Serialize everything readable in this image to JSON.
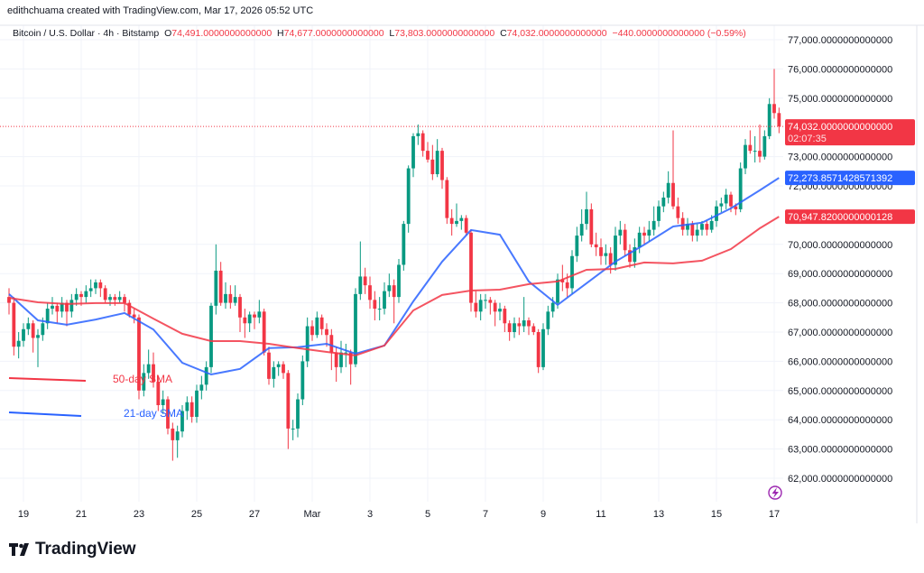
{
  "credit": "edithchuama created with TradingView.com, Mar 17, 2026 05:52 UTC",
  "symbol": {
    "title": "Bitcoin / U.S. Dollar · 4h · Bitstamp",
    "open_label": "O",
    "open": "74,491.0000000000000",
    "high_label": "H",
    "high": "74,677.0000000000000",
    "low_label": "L",
    "low": "73,803.0000000000000",
    "close_label": "C",
    "close": "74,032.0000000000000",
    "change": "−440.0000000000000 (−0.59%)"
  },
  "logo_text": "TradingView",
  "colors": {
    "up": "#089981",
    "down": "#f23645",
    "sma21": "#2962ff",
    "sma50": "#f23645",
    "grid": "#f0f3fa"
  },
  "icons": {
    "bottom_right": "lightning-icon"
  },
  "chart_data": {
    "type": "candlestick",
    "title": "",
    "interval": "4h",
    "start": "2026-02-18 12:00",
    "ylim": [
      61500,
      77600
    ],
    "grid": true,
    "y_ticks": [
      {
        "v": 77000,
        "label": "77,000.0000000000000"
      },
      {
        "v": 76000,
        "label": "76,000.0000000000000"
      },
      {
        "v": 75000,
        "label": "75,000.0000000000000"
      },
      {
        "v": 73000,
        "label": "73,000.0000000000000"
      },
      {
        "v": 72000,
        "label": "72,000.0000000000000"
      },
      {
        "v": 70000,
        "label": "70,000.0000000000000"
      },
      {
        "v": 69000,
        "label": "69,000.0000000000000"
      },
      {
        "v": 68000,
        "label": "68,000.0000000000000"
      },
      {
        "v": 67000,
        "label": "67,000.0000000000000"
      },
      {
        "v": 66000,
        "label": "66,000.0000000000000"
      },
      {
        "v": 65000,
        "label": "65,000.0000000000000"
      },
      {
        "v": 64000,
        "label": "64,000.0000000000000"
      },
      {
        "v": 63000,
        "label": "63,000.0000000000000"
      },
      {
        "v": 62000,
        "label": "62,000.0000000000000"
      }
    ],
    "x_ticks": [
      {
        "t": "2026-02-19",
        "label": "19"
      },
      {
        "t": "2026-02-21",
        "label": "21"
      },
      {
        "t": "2026-02-23",
        "label": "23"
      },
      {
        "t": "2026-02-25",
        "label": "25"
      },
      {
        "t": "2026-02-27",
        "label": "27"
      },
      {
        "t": "2026-03-01",
        "label": "Mar"
      },
      {
        "t": "2026-03-03",
        "label": "3"
      },
      {
        "t": "2026-03-05",
        "label": "5"
      },
      {
        "t": "2026-03-07",
        "label": "7"
      },
      {
        "t": "2026-03-09",
        "label": "9"
      },
      {
        "t": "2026-03-11",
        "label": "11"
      },
      {
        "t": "2026-03-13",
        "label": "13"
      },
      {
        "t": "2026-03-15",
        "label": "15"
      },
      {
        "t": "2026-03-17",
        "label": "17"
      }
    ],
    "ohlc": [
      [
        68200,
        68500,
        67600,
        68000
      ],
      [
        68000,
        68200,
        66200,
        66500
      ],
      [
        66500,
        67000,
        66100,
        66700
      ],
      [
        66700,
        67300,
        66500,
        67100
      ],
      [
        67100,
        67500,
        66900,
        67300
      ],
      [
        67300,
        67400,
        66300,
        66800
      ],
      [
        66800,
        67100,
        65800,
        66900
      ],
      [
        66900,
        67500,
        66700,
        67300
      ],
      [
        67300,
        68000,
        67100,
        67800
      ],
      [
        67800,
        68200,
        67600,
        67900
      ],
      [
        67900,
        68000,
        67300,
        67700
      ],
      [
        67700,
        68200,
        67500,
        68000
      ],
      [
        68000,
        68100,
        67200,
        67700
      ],
      [
        67700,
        68300,
        67500,
        68100
      ],
      [
        68100,
        68500,
        67900,
        68300
      ],
      [
        68300,
        68400,
        67900,
        68200
      ],
      [
        68200,
        68600,
        68000,
        68400
      ],
      [
        68400,
        68800,
        68200,
        68500
      ],
      [
        68500,
        68800,
        68300,
        68700
      ],
      [
        68700,
        68800,
        68200,
        68500
      ],
      [
        68500,
        68600,
        68000,
        68100
      ],
      [
        68100,
        68300,
        67900,
        68200
      ],
      [
        68200,
        68300,
        67900,
        68100
      ],
      [
        68100,
        68400,
        68000,
        68200
      ],
      [
        68200,
        68300,
        67700,
        68000
      ],
      [
        68000,
        68100,
        67500,
        67600
      ],
      [
        67600,
        67800,
        67300,
        67500
      ],
      [
        67500,
        67600,
        64700,
        65000
      ],
      [
        65000,
        65900,
        64800,
        65600
      ],
      [
        65600,
        66400,
        65400,
        65900
      ],
      [
        65900,
        66300,
        65100,
        65300
      ],
      [
        65300,
        65500,
        64300,
        64500
      ],
      [
        64500,
        65000,
        64200,
        64700
      ],
      [
        64700,
        64800,
        63500,
        63700
      ],
      [
        63700,
        63900,
        62600,
        63300
      ],
      [
        63300,
        63800,
        62700,
        63600
      ],
      [
        63600,
        64500,
        63400,
        64300
      ],
      [
        64300,
        64800,
        64000,
        64600
      ],
      [
        64600,
        64800,
        63900,
        64100
      ],
      [
        64100,
        65200,
        63900,
        65000
      ],
      [
        65000,
        65500,
        64700,
        65200
      ],
      [
        65200,
        66000,
        65000,
        65800
      ],
      [
        65800,
        68000,
        65600,
        67900
      ],
      [
        67900,
        70000,
        67600,
        69100
      ],
      [
        69100,
        69400,
        67900,
        68000
      ],
      [
        68000,
        68700,
        67800,
        68300
      ],
      [
        68300,
        68600,
        67800,
        68000
      ],
      [
        68000,
        68600,
        67900,
        68200
      ],
      [
        68200,
        68300,
        67000,
        67500
      ],
      [
        67500,
        67800,
        66800,
        67300
      ],
      [
        67300,
        67700,
        67000,
        67600
      ],
      [
        67600,
        67700,
        67100,
        67500
      ],
      [
        67500,
        68100,
        67300,
        67700
      ],
      [
        67700,
        67800,
        66200,
        66300
      ],
      [
        66300,
        66500,
        65200,
        65400
      ],
      [
        65400,
        66000,
        65100,
        65800
      ],
      [
        65800,
        66000,
        65500,
        65900
      ],
      [
        65900,
        66000,
        65400,
        65600
      ],
      [
        65600,
        65700,
        63000,
        63700
      ],
      [
        63700,
        64000,
        63300,
        63700
      ],
      [
        63700,
        64900,
        63400,
        64700
      ],
      [
        64700,
        66200,
        64500,
        66000
      ],
      [
        66000,
        67500,
        65800,
        67200
      ],
      [
        67200,
        67400,
        66700,
        66900
      ],
      [
        66900,
        67700,
        66800,
        67500
      ],
      [
        67500,
        67600,
        66900,
        67100
      ],
      [
        67100,
        67300,
        66500,
        66900
      ],
      [
        66900,
        67100,
        65700,
        66300
      ],
      [
        66300,
        66500,
        65300,
        65800
      ],
      [
        65800,
        66700,
        65600,
        66300
      ],
      [
        66300,
        66600,
        65800,
        66300
      ],
      [
        66300,
        66400,
        65200,
        65900
      ],
      [
        65900,
        68500,
        65800,
        68300
      ],
      [
        68300,
        70100,
        68100,
        68900
      ],
      [
        68900,
        69200,
        68300,
        68600
      ],
      [
        68600,
        68900,
        67800,
        68100
      ],
      [
        68100,
        68400,
        67400,
        67800
      ],
      [
        67800,
        68200,
        67400,
        67800
      ],
      [
        67800,
        68700,
        67600,
        68400
      ],
      [
        68400,
        69000,
        68200,
        68600
      ],
      [
        68600,
        68800,
        67300,
        68200
      ],
      [
        68200,
        69500,
        68000,
        69300
      ],
      [
        69300,
        70800,
        69100,
        70700
      ],
      [
        70700,
        72700,
        70400,
        72600
      ],
      [
        72600,
        73800,
        72300,
        73700
      ],
      [
        73700,
        74100,
        73400,
        73800
      ],
      [
        73800,
        73900,
        73000,
        73200
      ],
      [
        73200,
        73500,
        72800,
        72900
      ],
      [
        72900,
        73400,
        72200,
        72400
      ],
      [
        72400,
        73600,
        72300,
        73200
      ],
      [
        73200,
        73300,
        71900,
        72200
      ],
      [
        72200,
        72300,
        70700,
        70900
      ],
      [
        70900,
        71200,
        70300,
        70700
      ],
      [
        70700,
        71400,
        70600,
        70800
      ],
      [
        70800,
        71000,
        70500,
        70900
      ],
      [
        70900,
        71000,
        70300,
        70400
      ],
      [
        70400,
        70500,
        67700,
        68000
      ],
      [
        68000,
        68400,
        67500,
        67700
      ],
      [
        67700,
        68300,
        67400,
        68100
      ],
      [
        68100,
        68300,
        67800,
        68100
      ],
      [
        68100,
        68200,
        67600,
        68000
      ],
      [
        68000,
        68100,
        67200,
        67700
      ],
      [
        67700,
        68000,
        67400,
        67800
      ],
      [
        67800,
        67900,
        67000,
        67300
      ],
      [
        67300,
        67400,
        66700,
        67000
      ],
      [
        67000,
        67500,
        66800,
        67300
      ],
      [
        67300,
        67500,
        66900,
        67200
      ],
      [
        67200,
        68200,
        67000,
        67400
      ],
      [
        67400,
        67500,
        66900,
        67200
      ],
      [
        67200,
        67300,
        66900,
        67000
      ],
      [
        67000,
        67100,
        65600,
        65800
      ],
      [
        65800,
        67300,
        65700,
        67100
      ],
      [
        67100,
        67900,
        66900,
        67700
      ],
      [
        67700,
        68200,
        67500,
        68000
      ],
      [
        68000,
        69000,
        67800,
        68800
      ],
      [
        68800,
        69300,
        68400,
        68700
      ],
      [
        68700,
        69000,
        68200,
        68500
      ],
      [
        68500,
        69800,
        68300,
        69600
      ],
      [
        69600,
        70600,
        69400,
        70300
      ],
      [
        70300,
        71200,
        70100,
        70700
      ],
      [
        70700,
        71800,
        70500,
        71200
      ],
      [
        71200,
        71400,
        69900,
        70000
      ],
      [
        70000,
        70400,
        69600,
        69900
      ],
      [
        69900,
        70200,
        69300,
        69600
      ],
      [
        69600,
        70000,
        69300,
        69700
      ],
      [
        69700,
        69900,
        69000,
        69300
      ],
      [
        69300,
        70600,
        69100,
        70300
      ],
      [
        70300,
        70800,
        70000,
        70500
      ],
      [
        70500,
        70700,
        69600,
        69800
      ],
      [
        69800,
        70000,
        69200,
        69400
      ],
      [
        69400,
        70200,
        69200,
        69900
      ],
      [
        69900,
        70600,
        69700,
        70400
      ],
      [
        70400,
        70600,
        70000,
        70300
      ],
      [
        70300,
        70800,
        70100,
        70500
      ],
      [
        70500,
        71300,
        70300,
        70800
      ],
      [
        70800,
        71500,
        70600,
        71300
      ],
      [
        71300,
        71800,
        71100,
        71600
      ],
      [
        71600,
        72500,
        71400,
        72100
      ],
      [
        72100,
        73900,
        71200,
        71300
      ],
      [
        71300,
        71600,
        70700,
        70900
      ],
      [
        70900,
        71100,
        70300,
        70500
      ],
      [
        70500,
        70900,
        70300,
        70700
      ],
      [
        70700,
        70800,
        70100,
        70300
      ],
      [
        70300,
        70700,
        70100,
        70500
      ],
      [
        70500,
        70800,
        70300,
        70700
      ],
      [
        70700,
        70800,
        70300,
        70500
      ],
      [
        70500,
        71000,
        70400,
        70800
      ],
      [
        70800,
        71500,
        70600,
        71300
      ],
      [
        71300,
        71600,
        71100,
        71400
      ],
      [
        71400,
        71900,
        71200,
        71700
      ],
      [
        71700,
        71800,
        71100,
        71300
      ],
      [
        71300,
        71400,
        71000,
        71200
      ],
      [
        71200,
        72800,
        71100,
        72600
      ],
      [
        72600,
        73600,
        72400,
        73400
      ],
      [
        73400,
        73900,
        73100,
        73200
      ],
      [
        73200,
        73700,
        72800,
        73200
      ],
      [
        73200,
        74100,
        72800,
        73000
      ],
      [
        73000,
        73900,
        72900,
        73700
      ],
      [
        73700,
        75000,
        73600,
        74800
      ],
      [
        74800,
        76000,
        74300,
        74491
      ],
      [
        74491,
        74677,
        73803,
        74032
      ]
    ],
    "series": [
      {
        "name": "21-day SMA",
        "color": "#2962ff",
        "last_label": "72,273.8571428571392",
        "points": [
          [
            "2026-02-18 12:00",
            68300
          ],
          [
            "2026-02-19 12:00",
            67400
          ],
          [
            "2026-02-20 12:00",
            67250
          ],
          [
            "2026-02-21 12:00",
            67430
          ],
          [
            "2026-02-22 12:00",
            67650
          ],
          [
            "2026-02-23 12:00",
            67090
          ],
          [
            "2026-02-24 12:00",
            65950
          ],
          [
            "2026-02-25 12:00",
            65550
          ],
          [
            "2026-02-26 12:00",
            65740
          ],
          [
            "2026-02-27 12:00",
            66450
          ],
          [
            "2026-02-28 12:00",
            66480
          ],
          [
            "2026-03-01 12:00",
            66600
          ],
          [
            "2026-03-02 12:00",
            66260
          ],
          [
            "2026-03-03 12:00",
            66540
          ],
          [
            "2026-03-04 12:00",
            68050
          ],
          [
            "2026-03-05 12:00",
            69410
          ],
          [
            "2026-03-06 12:00",
            70490
          ],
          [
            "2026-03-07 12:00",
            70330
          ],
          [
            "2026-03-08 12:00",
            68730
          ],
          [
            "2026-03-09 12:00",
            67930
          ],
          [
            "2026-03-10 12:00",
            68670
          ],
          [
            "2026-03-11 12:00",
            69410
          ],
          [
            "2026-03-12 12:00",
            69990
          ],
          [
            "2026-03-13 12:00",
            70610
          ],
          [
            "2026-03-14 12:00",
            70740
          ],
          [
            "2026-03-15 12:00",
            71230
          ],
          [
            "2026-03-16 12:00",
            71850
          ],
          [
            "2026-03-17 04:00",
            72273.86
          ]
        ]
      },
      {
        "name": "50-day SMA",
        "color": "#f23645",
        "last_label": "70,947.8200000000128",
        "points": [
          [
            "2026-02-18 12:00",
            68170
          ],
          [
            "2026-02-19 12:00",
            68020
          ],
          [
            "2026-02-20 12:00",
            67960
          ],
          [
            "2026-02-21 12:00",
            67990
          ],
          [
            "2026-02-22 12:00",
            67990
          ],
          [
            "2026-02-23 12:00",
            67460
          ],
          [
            "2026-02-24 12:00",
            66940
          ],
          [
            "2026-02-25 12:00",
            66690
          ],
          [
            "2026-02-26 12:00",
            66690
          ],
          [
            "2026-02-27 12:00",
            66600
          ],
          [
            "2026-02-28 12:00",
            66450
          ],
          [
            "2026-03-01 12:00",
            66320
          ],
          [
            "2026-03-02 12:00",
            66200
          ],
          [
            "2026-03-03 12:00",
            66540
          ],
          [
            "2026-03-04 12:00",
            67740
          ],
          [
            "2026-03-05 12:00",
            68270
          ],
          [
            "2026-03-06 12:00",
            68420
          ],
          [
            "2026-03-07 12:00",
            68450
          ],
          [
            "2026-03-08 12:00",
            68640
          ],
          [
            "2026-03-09 12:00",
            68730
          ],
          [
            "2026-03-10 12:00",
            69130
          ],
          [
            "2026-03-11 12:00",
            69160
          ],
          [
            "2026-03-12 12:00",
            69380
          ],
          [
            "2026-03-13 12:00",
            69350
          ],
          [
            "2026-03-14 12:00",
            69440
          ],
          [
            "2026-03-15 12:00",
            69840
          ],
          [
            "2026-03-16 12:00",
            70550
          ],
          [
            "2026-03-17 04:00",
            70947.82
          ]
        ]
      }
    ],
    "last_price": {
      "value": 74032,
      "label": "74,032.0000000000000",
      "countdown": "02:07:35"
    },
    "annotations": [
      {
        "text": "50-day SMA",
        "color": "#f23645"
      },
      {
        "text": "21-day SMA",
        "color": "#2962ff"
      }
    ]
  }
}
